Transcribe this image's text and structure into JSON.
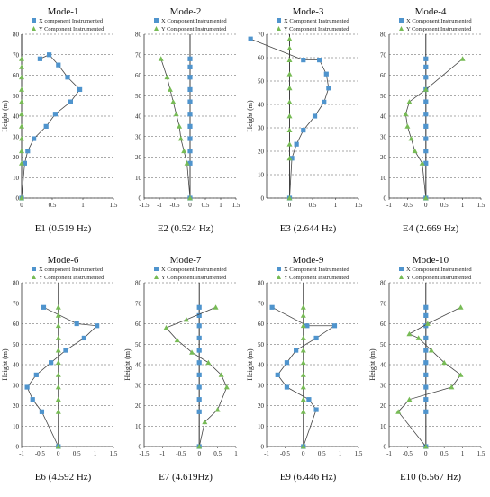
{
  "colors": {
    "x_series": "#4f94cd",
    "y_series": "#77bb55",
    "line": "#444444",
    "zero_line": "#222222"
  },
  "legend": {
    "x_label_upper": "X Component Instrumented",
    "x_label_lower": "X component Instrumented",
    "y_label": "Y Component Instrumented"
  },
  "chart_data": [
    {
      "type": "line",
      "title": "Mode-1",
      "caption": "E1 (0.519 Hz)",
      "ylabel": "Height (m)",
      "xlim": [
        0,
        1.5
      ],
      "xticks": [
        "0",
        "0.5",
        "1",
        "1.5"
      ],
      "ylim": [
        0,
        80
      ],
      "yticks": [
        0,
        10,
        20,
        30,
        40,
        50,
        60,
        70,
        80
      ],
      "legend_x": "X component Instrumented",
      "legend_y": "Y Component Instrumented",
      "series": [
        {
          "name": "X component Instrumented",
          "marker": "square",
          "x": [
            0,
            0.05,
            0.1,
            0.2,
            0.4,
            0.55,
            0.8,
            0.95,
            0.75,
            0.6,
            0.45,
            0.3
          ],
          "y": [
            0,
            17,
            23,
            29,
            35,
            41,
            47,
            53,
            59,
            65,
            70,
            68
          ]
        },
        {
          "name": "Y Component Instrumented",
          "marker": "triangle",
          "x": [
            0,
            0,
            0,
            0,
            0,
            0,
            0,
            0,
            0,
            0,
            0
          ],
          "y": [
            0,
            17,
            23,
            29,
            35,
            41,
            47,
            53,
            59,
            64,
            68
          ]
        }
      ]
    },
    {
      "type": "line",
      "title": "Mode-2",
      "caption": "E2 (0.524 Hz)",
      "ylabel": "",
      "xlim": [
        -1.5,
        1.5
      ],
      "xticks": [
        "-1.5",
        "-1",
        "-0.5",
        "0",
        "0.5",
        "1",
        "1.5"
      ],
      "ylim": [
        0,
        80
      ],
      "yticks": [
        0,
        10,
        20,
        30,
        40,
        50,
        60,
        70,
        80
      ],
      "legend_x": "X Component Instrumented",
      "legend_y": "Y Component Instrumented",
      "series": [
        {
          "name": "X Component Instrumented",
          "marker": "square",
          "x": [
            0,
            0,
            0,
            0,
            0,
            0,
            0,
            0,
            0,
            0,
            0
          ],
          "y": [
            0,
            17,
            23,
            29,
            35,
            41,
            47,
            53,
            59,
            64,
            68
          ]
        },
        {
          "name": "Y Component Instrumented",
          "marker": "triangle",
          "x": [
            0,
            -0.1,
            -0.2,
            -0.3,
            -0.35,
            -0.45,
            -0.55,
            -0.65,
            -0.75,
            -0.95
          ],
          "y": [
            0,
            17,
            23,
            29,
            35,
            41,
            47,
            53,
            59,
            68
          ]
        }
      ]
    },
    {
      "type": "line",
      "title": "Mode-3",
      "caption": "E3 (2.644 Hz)",
      "ylabel": "Height (m)",
      "xlim": [
        -0.5,
        1.5
      ],
      "xticks": [
        "0",
        "0.5",
        "1",
        "1.5"
      ],
      "ylim": [
        0,
        70
      ],
      "yticks": [
        0,
        10,
        20,
        30,
        40,
        50,
        60,
        70
      ],
      "legend_x": "X Component Instrumented",
      "legend_y": "Y Component Instrumented",
      "series": [
        {
          "name": "X Component Instrumented",
          "marker": "square",
          "x": [
            0,
            0.05,
            0.15,
            0.3,
            0.55,
            0.75,
            0.85,
            0.8,
            0.65,
            0.3,
            -0.85
          ],
          "y": [
            0,
            17,
            23,
            29,
            35,
            41,
            47,
            53,
            59,
            59,
            68
          ]
        },
        {
          "name": "Y Component Instrumented",
          "marker": "triangle",
          "x": [
            0,
            0,
            0,
            0,
            0,
            0,
            0,
            0,
            0,
            0,
            0
          ],
          "y": [
            0,
            17,
            23,
            29,
            35,
            41,
            47,
            53,
            59,
            64,
            68
          ]
        }
      ]
    },
    {
      "type": "line",
      "title": "Mode-4",
      "caption": "E4 (2.669 Hz)",
      "ylabel": "",
      "xlim": [
        -1,
        1.5
      ],
      "xticks": [
        "-1",
        "-0.5",
        "0",
        "0.5",
        "1",
        "1.5"
      ],
      "ylim": [
        0,
        80
      ],
      "yticks": [
        0,
        10,
        20,
        30,
        40,
        50,
        60,
        70,
        80
      ],
      "legend_x": "X Component Instrumented",
      "legend_y": "Y Component Instrumented",
      "series": [
        {
          "name": "X Component Instrumented",
          "marker": "square",
          "x": [
            0,
            0,
            0,
            0,
            0,
            0,
            0,
            0,
            0,
            0,
            0
          ],
          "y": [
            0,
            17,
            23,
            29,
            35,
            41,
            47,
            53,
            59,
            64,
            68
          ]
        },
        {
          "name": "Y Component Instrumented",
          "marker": "triangle",
          "x": [
            0,
            -0.1,
            -0.3,
            -0.4,
            -0.5,
            -0.55,
            -0.45,
            0,
            1.0
          ],
          "y": [
            0,
            17,
            23,
            29,
            35,
            41,
            47,
            53,
            68
          ]
        }
      ]
    },
    {
      "type": "line",
      "title": "Mode-6",
      "caption": "E6 (4.592 Hz)",
      "ylabel": "Height (m)",
      "xlim": [
        -1,
        1.5
      ],
      "xticks": [
        "-1",
        "-0.5",
        "0",
        "0.5",
        "1",
        "1.5"
      ],
      "ylim": [
        0,
        80
      ],
      "yticks": [
        0,
        10,
        20,
        30,
        40,
        50,
        60,
        70,
        80
      ],
      "legend_x": "X component Instrumented",
      "legend_y": "Y Component Instrumented",
      "series": [
        {
          "name": "X component Instrumented",
          "marker": "square",
          "x": [
            0,
            -0.45,
            -0.7,
            -0.85,
            -0.6,
            -0.2,
            0.2,
            0.7,
            1.05,
            0.5,
            -0.4
          ],
          "y": [
            0,
            17,
            23,
            29,
            35,
            41,
            47,
            53,
            59,
            60,
            68
          ]
        },
        {
          "name": "Y Component Instrumented",
          "marker": "triangle",
          "x": [
            0,
            0,
            0,
            0,
            0,
            0,
            0,
            0,
            0,
            0,
            0
          ],
          "y": [
            0,
            17,
            23,
            29,
            35,
            41,
            47,
            53,
            59,
            64,
            68
          ]
        }
      ]
    },
    {
      "type": "line",
      "title": "Mode-7",
      "caption": "E7 (4.619Hz)",
      "ylabel": "Height (m)",
      "xlim": [
        -1.5,
        1.0
      ],
      "xticks": [
        "-1.5",
        "-1",
        "-0.5",
        "0",
        "0.5",
        "1"
      ],
      "ylim": [
        0,
        80
      ],
      "yticks": [
        0,
        10,
        20,
        30,
        40,
        50,
        60,
        70,
        80
      ],
      "legend_x": "X Component Instrumented",
      "legend_y": "Y Component Instrumented",
      "series": [
        {
          "name": "X Component Instrumented",
          "marker": "square",
          "x": [
            0,
            0,
            0,
            0,
            0,
            0,
            0,
            0,
            0,
            0,
            0
          ],
          "y": [
            0,
            17,
            23,
            29,
            35,
            41,
            47,
            53,
            59,
            64,
            68
          ]
        },
        {
          "name": "Y Component Instrumented",
          "marker": "triangle",
          "x": [
            0,
            0.15,
            0.5,
            0.75,
            0.6,
            0.25,
            -0.2,
            -0.6,
            -0.9,
            -0.35,
            0.45
          ],
          "y": [
            0,
            12,
            18,
            29,
            35,
            41,
            46,
            52,
            58,
            62,
            68
          ]
        }
      ]
    },
    {
      "type": "line",
      "title": "Mode-9",
      "caption": "E9 (6.446 Hz)",
      "ylabel": "Height (m)",
      "xlim": [
        -1,
        1.5
      ],
      "xticks": [
        "-1",
        "-0.5",
        "0",
        "0.5",
        "1",
        "1.5"
      ],
      "ylim": [
        0,
        80
      ],
      "yticks": [
        0,
        10,
        20,
        30,
        40,
        50,
        60,
        70,
        80
      ],
      "legend_x": "X Component Instrumented",
      "legend_y": "Y Component Instrumented",
      "series": [
        {
          "name": "X Component Instrumented",
          "marker": "square",
          "x": [
            0,
            0.35,
            0.15,
            -0.45,
            -0.7,
            -0.45,
            -0.2,
            0.35,
            0.85,
            0.1,
            -0.85
          ],
          "y": [
            0,
            18,
            23,
            29,
            35,
            41,
            47,
            53,
            59,
            59,
            68
          ]
        },
        {
          "name": "Y Component Instrumented",
          "marker": "triangle",
          "x": [
            0,
            0,
            0,
            0,
            0,
            0,
            0,
            0,
            0,
            0,
            0
          ],
          "y": [
            0,
            17,
            23,
            29,
            35,
            41,
            47,
            53,
            59,
            64,
            68
          ]
        }
      ]
    },
    {
      "type": "line",
      "title": "Mode-10",
      "caption": "E10 (6.567 Hz)",
      "ylabel": "Height (m)",
      "xlim": [
        -1,
        1.5
      ],
      "xticks": [
        "-1",
        "-0.5",
        "0",
        "0.5",
        "1",
        "1.5"
      ],
      "ylim": [
        0,
        80
      ],
      "yticks": [
        0,
        10,
        20,
        30,
        40,
        50,
        60,
        70,
        80
      ],
      "legend_x": "X Component Instrumented",
      "legend_y": "Y Component Instrumented",
      "series": [
        {
          "name": "X Component Instrumented",
          "marker": "square",
          "x": [
            0,
            0,
            0,
            0,
            0,
            0,
            0,
            0,
            0,
            0,
            0
          ],
          "y": [
            0,
            17,
            23,
            29,
            35,
            41,
            47,
            53,
            59,
            64,
            68
          ]
        },
        {
          "name": "Y Component Instrumented",
          "marker": "triangle",
          "x": [
            0,
            -0.75,
            -0.45,
            0.7,
            0.95,
            0.5,
            0.15,
            -0.2,
            -0.45,
            0.05,
            0.95
          ],
          "y": [
            0,
            17,
            23,
            29,
            35,
            41,
            47,
            53,
            55,
            60,
            68
          ]
        }
      ]
    }
  ]
}
